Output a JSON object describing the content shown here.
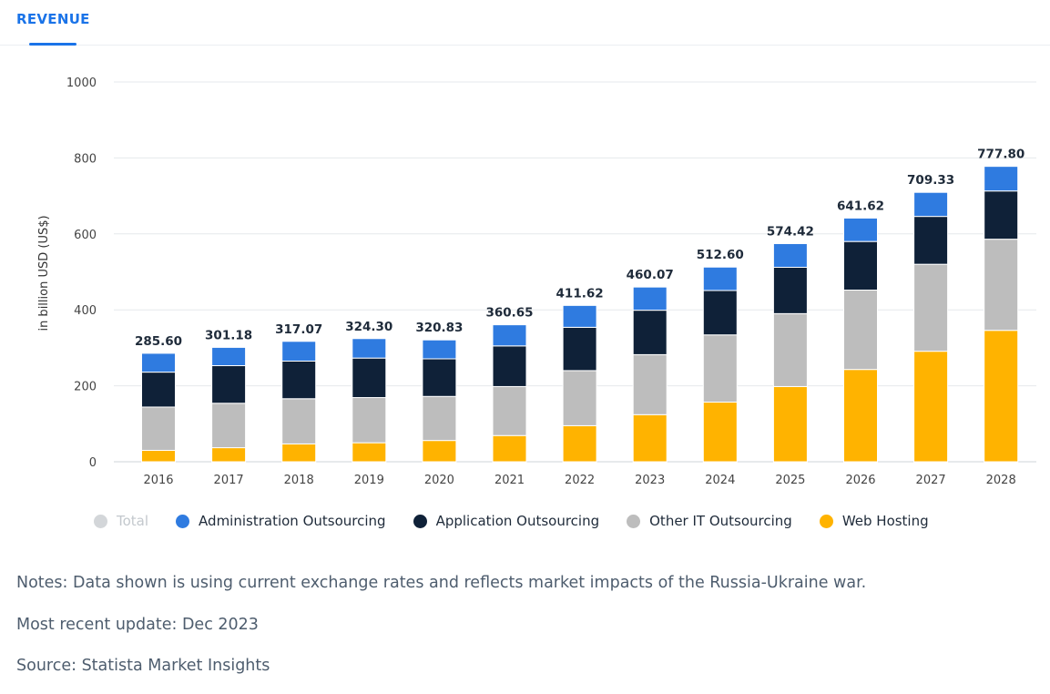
{
  "tab": {
    "label": "REVENUE"
  },
  "chart_data": {
    "type": "bar",
    "stacked": true,
    "ylabel": "in billion USD (US$)",
    "ylim": [
      0,
      1000
    ],
    "yticks": [
      0,
      200,
      400,
      600,
      800,
      1000
    ],
    "grid": true,
    "legend_placement": "bottom",
    "categories": [
      "2016",
      "2017",
      "2018",
      "2019",
      "2020",
      "2021",
      "2022",
      "2023",
      "2024",
      "2025",
      "2026",
      "2027",
      "2028"
    ],
    "totals": [
      "285.60",
      "301.18",
      "317.07",
      "324.30",
      "320.83",
      "360.65",
      "411.62",
      "460.07",
      "512.60",
      "574.42",
      "641.62",
      "709.33",
      "777.80"
    ],
    "series": [
      {
        "name": "Web Hosting",
        "color": "#ffb300",
        "values": [
          30,
          37,
          47,
          50,
          56,
          69,
          95,
          124,
          157,
          198,
          243,
          291,
          346
        ]
      },
      {
        "name": "Other IT Outsourcing",
        "color": "#bdbdbd",
        "values": [
          114,
          117,
          119,
          119,
          116,
          129,
          145,
          158,
          177,
          192,
          209,
          229,
          240
        ]
      },
      {
        "name": "Application Outsourcing",
        "color": "#0f2138",
        "values": [
          92,
          99,
          99,
          104,
          99,
          107,
          114,
          117,
          117,
          122,
          128,
          126,
          127
        ]
      },
      {
        "name": "Administration Outsourcing",
        "color": "#2f7be0",
        "values": [
          49.6,
          48.18,
          52.07,
          51.3,
          49.83,
          55.65,
          57.62,
          61.07,
          61.6,
          62.42,
          61.62,
          63.33,
          64.8
        ]
      }
    ]
  },
  "legend": [
    {
      "label": "Total",
      "color": "#d3d6d9",
      "muted": true
    },
    {
      "label": "Administration Outsourcing",
      "color": "#2f7be0",
      "muted": false
    },
    {
      "label": "Application Outsourcing",
      "color": "#0f2138",
      "muted": false
    },
    {
      "label": "Other IT Outsourcing",
      "color": "#bdbdbd",
      "muted": false
    },
    {
      "label": "Web Hosting",
      "color": "#ffb300",
      "muted": false
    }
  ],
  "notes": {
    "line1": "Notes: Data shown is using current exchange rates and reflects market impacts of the Russia-Ukraine war.",
    "line2": "Most recent update: Dec 2023",
    "line3": "Source: Statista Market Insights"
  }
}
